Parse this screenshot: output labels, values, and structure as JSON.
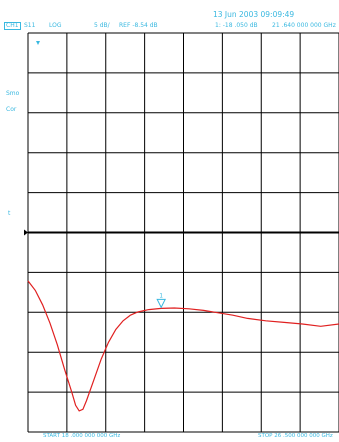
{
  "timestamp": "13 Jun 2003 09:09:49",
  "header": {
    "channel": "CH1",
    "parameter": "S11",
    "format": "LOG",
    "scale": "5 dB/",
    "ref": "REF -8.54 dB",
    "marker": "1: -18 .050 dB",
    "marker_freq": "21 .640 000 000 GHz"
  },
  "side": {
    "smo": "Smo",
    "cor": "Cor",
    "trace_label": "t"
  },
  "footer": {
    "start": "START 18 .000 000 000 GHz",
    "stop": "STOP 26 .500 000 000 GHz"
  },
  "colors": {
    "grid": "#000000",
    "trace": "#e02020",
    "annotation": "#39b8e0",
    "marker": "#39b8e0"
  },
  "chart_data": {
    "type": "line",
    "x_unit": "GHz",
    "y_unit": "dB",
    "xlim": [
      18.0,
      26.5
    ],
    "ylim": [
      -33.54,
      16.46
    ],
    "reference_level": -8.54,
    "scale_per_div": 5,
    "grid": true,
    "marker": {
      "id": "1",
      "x": 21.64,
      "y": -18.05
    },
    "series": [
      {
        "points": [
          [
            18.0,
            -14.6
          ],
          [
            18.2,
            -15.8
          ],
          [
            18.4,
            -17.6
          ],
          [
            18.6,
            -19.9
          ],
          [
            18.8,
            -22.6
          ],
          [
            19.0,
            -25.7
          ],
          [
            19.2,
            -28.6
          ],
          [
            19.3,
            -30.2
          ],
          [
            19.4,
            -30.9
          ],
          [
            19.5,
            -30.7
          ],
          [
            19.6,
            -29.6
          ],
          [
            19.8,
            -27.0
          ],
          [
            20.0,
            -24.4
          ],
          [
            20.2,
            -22.3
          ],
          [
            20.4,
            -20.7
          ],
          [
            20.6,
            -19.6
          ],
          [
            20.8,
            -18.9
          ],
          [
            21.0,
            -18.5
          ],
          [
            21.3,
            -18.2
          ],
          [
            21.64,
            -18.05
          ],
          [
            22.0,
            -18.0
          ],
          [
            22.4,
            -18.1
          ],
          [
            22.8,
            -18.3
          ],
          [
            23.2,
            -18.6
          ],
          [
            23.6,
            -18.9
          ],
          [
            24.0,
            -19.3
          ],
          [
            24.5,
            -19.6
          ],
          [
            25.0,
            -19.8
          ],
          [
            25.5,
            -20.0
          ],
          [
            26.0,
            -20.3
          ],
          [
            26.5,
            -20.0
          ]
        ]
      }
    ]
  }
}
